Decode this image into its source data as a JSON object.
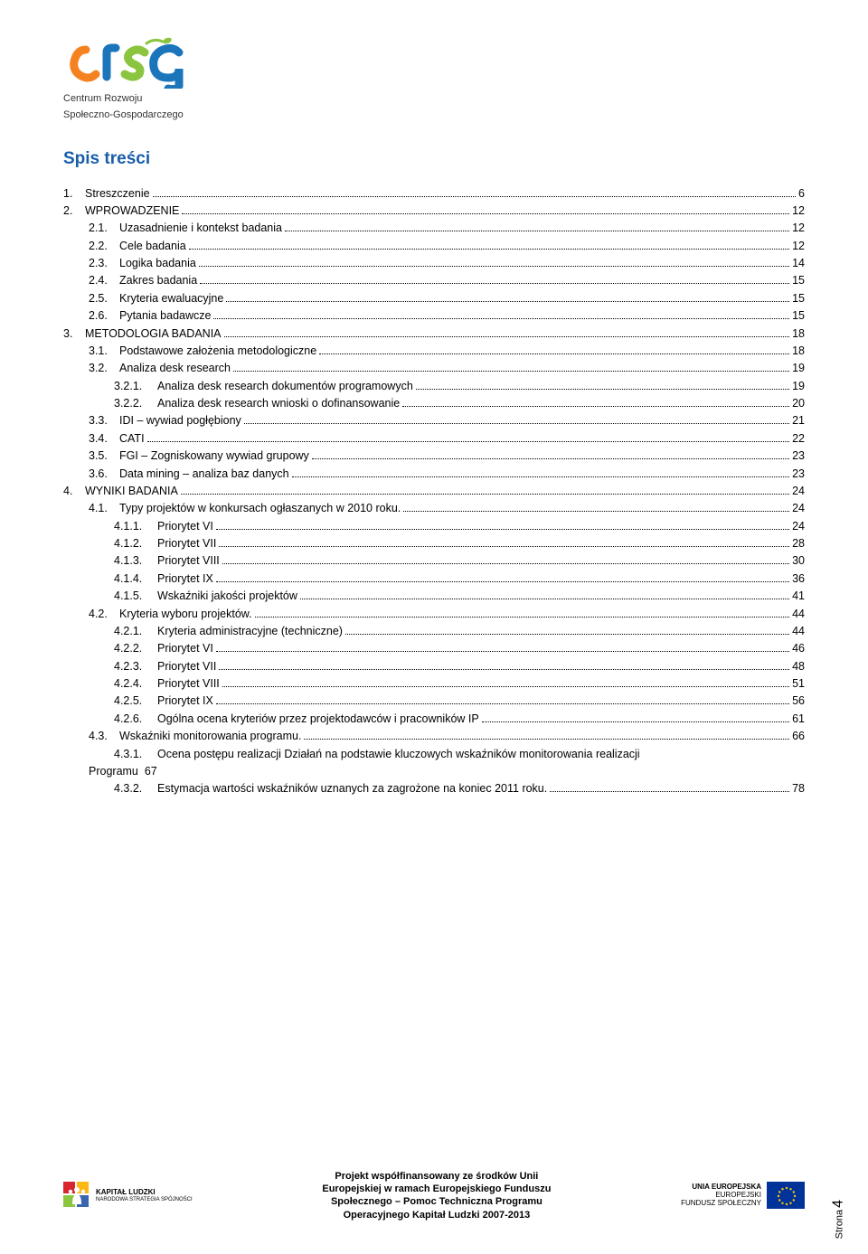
{
  "logo": {
    "sub1": "Centrum Rozwoju",
    "sub2": "Społeczno-Gospodarczego"
  },
  "title": "Spis treści",
  "toc": [
    {
      "lvl": 0,
      "num": "1.",
      "label": "Streszczenie",
      "page": "6"
    },
    {
      "lvl": 0,
      "num": "2.",
      "label": "WPROWADZENIE",
      "page": "12"
    },
    {
      "lvl": 1,
      "num": "2.1.",
      "label": "Uzasadnienie i kontekst badania",
      "page": "12"
    },
    {
      "lvl": 1,
      "num": "2.2.",
      "label": "Cele badania",
      "page": "12"
    },
    {
      "lvl": 1,
      "num": "2.3.",
      "label": "Logika badania",
      "page": "14"
    },
    {
      "lvl": 1,
      "num": "2.4.",
      "label": "Zakres badania",
      "page": "15"
    },
    {
      "lvl": 1,
      "num": "2.5.",
      "label": "Kryteria ewaluacyjne",
      "page": "15"
    },
    {
      "lvl": 1,
      "num": "2.6.",
      "label": "Pytania badawcze",
      "page": "15"
    },
    {
      "lvl": 0,
      "num": "3.",
      "label": "METODOLOGIA BADANIA",
      "page": "18"
    },
    {
      "lvl": 1,
      "num": "3.1.",
      "label": "Podstawowe założenia metodologiczne",
      "page": "18"
    },
    {
      "lvl": 1,
      "num": "3.2.",
      "label": "Analiza desk research",
      "page": "19"
    },
    {
      "lvl": 2,
      "num": "3.2.1.",
      "label": "Analiza desk research dokumentów programowych",
      "page": "19"
    },
    {
      "lvl": 2,
      "num": "3.2.2.",
      "label": "Analiza desk research wnioski o dofinansowanie",
      "page": "20"
    },
    {
      "lvl": 1,
      "num": "3.3.",
      "label": "IDI – wywiad pogłębiony",
      "page": "21"
    },
    {
      "lvl": 1,
      "num": "3.4.",
      "label": "CATI",
      "page": "22"
    },
    {
      "lvl": 1,
      "num": "3.5.",
      "label": "FGI – Zogniskowany wywiad grupowy",
      "page": "23"
    },
    {
      "lvl": 1,
      "num": "3.6.",
      "label": "Data mining – analiza baz danych",
      "page": "23"
    },
    {
      "lvl": 0,
      "num": "4.",
      "label": "WYNIKI BADANIA",
      "page": "24"
    },
    {
      "lvl": 1,
      "num": "4.1.",
      "label": "Typy projektów w konkursach ogłaszanych w 2010 roku.",
      "page": "24"
    },
    {
      "lvl": 2,
      "num": "4.1.1.",
      "label": "Priorytet VI",
      "page": "24"
    },
    {
      "lvl": 2,
      "num": "4.1.2.",
      "label": "Priorytet VII",
      "page": "28"
    },
    {
      "lvl": 2,
      "num": "4.1.3.",
      "label": "Priorytet VIII",
      "page": "30"
    },
    {
      "lvl": 2,
      "num": "4.1.4.",
      "label": "Priorytet IX",
      "page": "36"
    },
    {
      "lvl": 2,
      "num": "4.1.5.",
      "label": "Wskaźniki jakości projektów",
      "page": "41"
    },
    {
      "lvl": 1,
      "num": "4.2.",
      "label": "Kryteria wyboru projektów.",
      "page": "44"
    },
    {
      "lvl": 2,
      "num": "4.2.1.",
      "label": "Kryteria administracyjne (techniczne)",
      "page": "44"
    },
    {
      "lvl": 2,
      "num": "4.2.2.",
      "label": "Priorytet VI",
      "page": "46"
    },
    {
      "lvl": 2,
      "num": "4.2.3.",
      "label": "Priorytet VII",
      "page": "48"
    },
    {
      "lvl": 2,
      "num": "4.2.4.",
      "label": "Priorytet VIII",
      "page": "51"
    },
    {
      "lvl": 2,
      "num": "4.2.5.",
      "label": "Priorytet IX",
      "page": "56"
    },
    {
      "lvl": 2,
      "num": "4.2.6.",
      "label": "Ogólna ocena kryteriów przez projektodawców i pracowników IP",
      "page": "61"
    },
    {
      "lvl": 1,
      "num": "4.3.",
      "label": "Wskaźniki monitorowania programu.",
      "page": "66"
    }
  ],
  "toc431": {
    "num": "4.3.1.",
    "line1": "Ocena postępu realizacji Działań na podstawie kluczowych wskaźników monitorowania realizacji",
    "line2": "Programu",
    "page": "67"
  },
  "toc432": {
    "num": "4.3.2.",
    "label": "Estymacja wartości wskaźników uznanych za zagrożone na koniec 2011 roku.",
    "page": "78"
  },
  "footer": {
    "center1": "Projekt współfinansowany ze środków Unii",
    "center2": "Europejskiej w ramach Europejskiego Funduszu",
    "center3": "Społecznego – Pomoc Techniczna Programu",
    "center4": "Operacyjnego Kapitał Ludzki 2007-2013",
    "kapital1": "KAPITAŁ LUDZKI",
    "kapital2": "NARODOWA STRATEGIA SPÓJNOŚCI",
    "ue1": "UNIA EUROPEJSKA",
    "ue2": "EUROPEJSKI",
    "ue3": "FUNDUSZ SPOŁECZNY"
  },
  "pageLabel": "Strona",
  "pageNum": "4",
  "colors": {
    "title": "#185da8",
    "logo_green": "#8bc53f",
    "logo_orange": "#f58220",
    "logo_blue": "#1b75bb",
    "eu_blue": "#003399",
    "eu_gold": "#ffcc00",
    "kap_red": "#d7262e",
    "kap_yel": "#fdb813",
    "kap_grn": "#8cc63f",
    "kap_blu": "#3a66b0"
  }
}
